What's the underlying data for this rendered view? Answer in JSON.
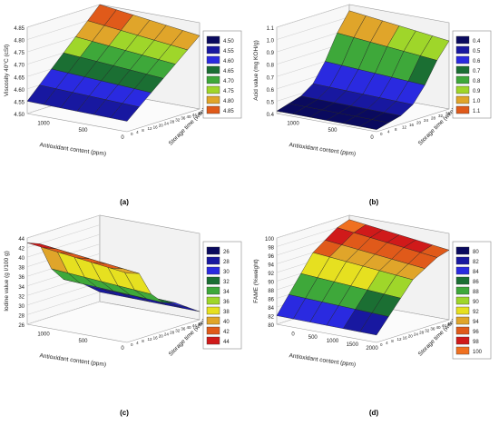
{
  "chart_data": [
    {
      "type": "surface",
      "caption": "(a)",
      "ylabel": "Viscosity 40°C (cSt)",
      "xlabel": "Antioxidant content (ppm)",
      "zlabel": "Storage time (weeks)",
      "ylim": [
        4.5,
        4.85
      ],
      "yticks": [
        "4.50",
        "4.55",
        "4.60",
        "4.65",
        "4.70",
        "4.75",
        "4.80",
        "4.85"
      ],
      "xticks": [
        "1000",
        "500",
        "0"
      ],
      "ztick_labels": [
        "0",
        "4",
        "8",
        "12",
        "16",
        "20",
        "24",
        "28",
        "32",
        "36",
        "40",
        "44",
        "48",
        "52"
      ],
      "legend": {
        "entries": [
          "4.50",
          "4.55",
          "4.60",
          "4.65",
          "4.70",
          "4.75",
          "4.80",
          "4.85"
        ],
        "colors": [
          "#0a0a5e",
          "#1818a0",
          "#2a2ae0",
          "#1b6f33",
          "#3ea83a",
          "#9fd62a",
          "#e0a52a",
          "#e05a1a"
        ]
      },
      "surface_levels": [
        4.55,
        4.6,
        4.65,
        4.7,
        4.75,
        4.8,
        4.85
      ]
    },
    {
      "type": "surface",
      "caption": "(b)",
      "ylabel": "Acid value (mg KOH/g)",
      "xlabel": "Antioxidant content (ppm)",
      "zlabel": "Storage time (weeks)",
      "ylim": [
        0.4,
        1.1
      ],
      "yticks": [
        "0.4",
        "0.5",
        "0.6",
        "0.7",
        "0.8",
        "0.9",
        "1.0",
        "1.1"
      ],
      "xticks": [
        "1000",
        "500",
        "0"
      ],
      "ztick_labels": [
        "0",
        "4",
        "8",
        "12",
        "16",
        "20",
        "24",
        "28",
        "32",
        "36",
        "40"
      ],
      "legend": {
        "entries": [
          "0.4",
          "0.5",
          "0.6",
          "0.7",
          "0.8",
          "0.9",
          "1.0",
          "1.1"
        ],
        "colors": [
          "#0a0a5e",
          "#1818a0",
          "#2a2ae0",
          "#1b6f33",
          "#3ea83a",
          "#9fd62a",
          "#e0a52a",
          "#e05a1a"
        ]
      },
      "surface_levels": [
        0.42,
        0.45,
        0.48,
        0.55,
        0.7,
        0.9,
        1.05
      ]
    },
    {
      "type": "surface",
      "caption": "(c)",
      "ylabel": "Iodine value (g I/100 g)",
      "xlabel": "Antioxidant content (ppm)",
      "zlabel": "Storage time (weeks)",
      "ylim": [
        26,
        44
      ],
      "yticks": [
        "26",
        "28",
        "30",
        "32",
        "34",
        "36",
        "38",
        "40",
        "42",
        "44"
      ],
      "xticks": [
        "1000",
        "500",
        "0"
      ],
      "ztick_labels": [
        "0",
        "4",
        "8",
        "12",
        "16",
        "20",
        "24",
        "28",
        "32",
        "36",
        "40",
        "44",
        "48",
        "52"
      ],
      "legend": {
        "entries": [
          "26",
          "28",
          "30",
          "32",
          "34",
          "36",
          "38",
          "40",
          "42",
          "44"
        ],
        "colors": [
          "#0a0a5e",
          "#1818a0",
          "#2a2ae0",
          "#1b6f33",
          "#3ea83a",
          "#9fd62a",
          "#e6e020",
          "#e0a52a",
          "#e05a1a",
          "#d01a1a"
        ]
      },
      "surface_levels": [
        43,
        42,
        36,
        33,
        32,
        30,
        28
      ]
    },
    {
      "type": "surface",
      "caption": "(d)",
      "ylabel": "FAME (%weight)",
      "xlabel": "Antioxidant content (ppm)",
      "zlabel": "Storage time (weeks)",
      "ylim": [
        80,
        100
      ],
      "yticks": [
        "80",
        "82",
        "84",
        "86",
        "88",
        "90",
        "92",
        "94",
        "96",
        "98",
        "100"
      ],
      "xticks": [
        "0",
        "500",
        "1000",
        "1500",
        "2000"
      ],
      "ztick_labels": [
        "0",
        "4",
        "8",
        "12",
        "16",
        "20",
        "24",
        "28",
        "32",
        "36",
        "40",
        "44",
        "48",
        "52"
      ],
      "legend": {
        "entries": [
          "80",
          "82",
          "84",
          "86",
          "88",
          "90",
          "92",
          "94",
          "96",
          "98",
          "100"
        ],
        "colors": [
          "#0a0a5e",
          "#1818a0",
          "#2a2ae0",
          "#1b6f33",
          "#3ea83a",
          "#9fd62a",
          "#e6e020",
          "#e0a52a",
          "#e05a1a",
          "#d01a1a",
          "#f07020"
        ]
      },
      "surface_levels": [
        82,
        86,
        90,
        94,
        96,
        98,
        99
      ]
    }
  ]
}
